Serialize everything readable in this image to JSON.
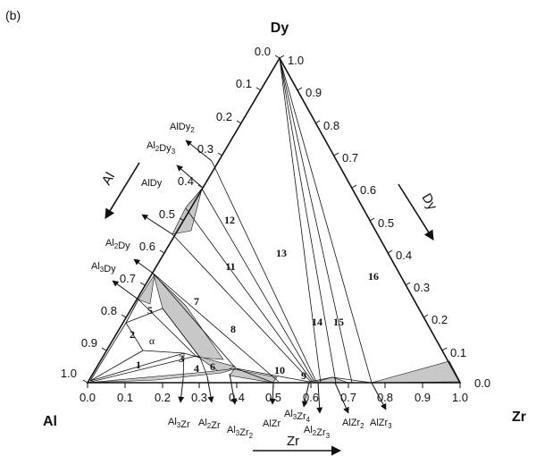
{
  "panel_label": "(b)",
  "corners": {
    "top": "Dy",
    "left": "Al",
    "right": "Zr"
  },
  "axis_titles": {
    "left": "Al",
    "right": "Dy",
    "bottom": "Zr"
  },
  "ticks": {
    "bottom": [
      "0.0",
      "0.1",
      "0.2",
      "0.3",
      "0.4",
      "0.5",
      "0.6",
      "0.7",
      "0.8",
      "0.9",
      "1.0"
    ],
    "right": [
      "1.0",
      "0.9",
      "0.8",
      "0.7",
      "0.6",
      "0.5",
      "0.4",
      "0.3",
      "0.2",
      "0.1",
      "0.0"
    ],
    "left": [
      "0.0",
      "0.1",
      "0.2",
      "0.3",
      "0.4",
      "0.5",
      "0.6",
      "0.7",
      "0.8",
      "0.9",
      "1.0"
    ]
  },
  "phases": {
    "left": [
      {
        "formula": "AlDy2",
        "html": "AlDy<sub>2</sub>"
      },
      {
        "formula": "Al2Dy3",
        "html": "Al<sub>2</sub>Dy<sub>3</sub>"
      },
      {
        "formula": "AlDy",
        "html": "AlDy"
      },
      {
        "formula": "Al2Dy",
        "html": "Al<sub>2</sub>Dy"
      },
      {
        "formula": "Al3Dy",
        "html": "Al<sub>3</sub>Dy"
      }
    ],
    "bottom": [
      {
        "formula": "Al3Zr",
        "html": "Al<sub>3</sub>Zr"
      },
      {
        "formula": "Al2Zr",
        "html": "Al<sub>2</sub>Zr"
      },
      {
        "formula": "Al3Zr2",
        "html": "Al<sub>3</sub>Zr<sub>2</sub>"
      },
      {
        "formula": "AlZr",
        "html": "AlZr"
      },
      {
        "formula": "Al3Zr4",
        "html": "Al<sub>3</sub>Zr<sub>4</sub>"
      },
      {
        "formula": "Al2Zr3",
        "html": "Al<sub>2</sub>Zr<sub>3</sub>"
      },
      {
        "formula": "AlZr2",
        "html": "AlZr<sub>2</sub>"
      },
      {
        "formula": "AlZr3",
        "html": "AlZr<sub>3</sub>"
      }
    ]
  },
  "regions": [
    "1",
    "2",
    "3",
    "4",
    "5",
    "6",
    "7",
    "8",
    "9",
    "10",
    "11",
    "12",
    "13",
    "14",
    "15",
    "16",
    "α"
  ]
}
